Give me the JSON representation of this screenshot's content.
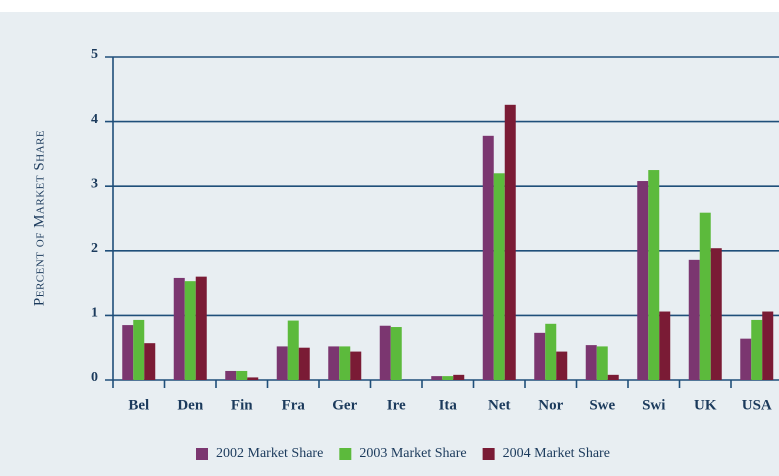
{
  "chart_data": {
    "type": "bar",
    "y_label": "Percent of Market Share",
    "categories": [
      "Bel",
      "Den",
      "Fin",
      "Fra",
      "Ger",
      "Ire",
      "Ita",
      "Net",
      "Nor",
      "Swe",
      "Swi",
      "UK",
      "USA"
    ],
    "series": [
      {
        "name": "2002 Market Share",
        "color": "#7b3670",
        "values": [
          0.85,
          1.58,
          0.14,
          0.52,
          0.52,
          0.84,
          0.06,
          3.78,
          0.73,
          0.54,
          3.08,
          1.86,
          0.64
        ]
      },
      {
        "name": "2003 Market Share",
        "color": "#5cba3c",
        "values": [
          0.93,
          1.53,
          0.14,
          0.92,
          0.52,
          0.82,
          0.06,
          3.2,
          0.87,
          0.52,
          3.25,
          2.59,
          0.93
        ]
      },
      {
        "name": "2004 Market Share",
        "color": "#7a1b35",
        "values": [
          0.57,
          1.6,
          0.04,
          0.5,
          0.44,
          null,
          0.08,
          4.26,
          0.44,
          0.08,
          1.06,
          2.04,
          1.06
        ]
      }
    ],
    "ylim": [
      0,
      5
    ],
    "yticks": [
      0,
      1,
      2,
      3,
      4,
      5
    ],
    "grid": true,
    "legend": "bottom"
  }
}
